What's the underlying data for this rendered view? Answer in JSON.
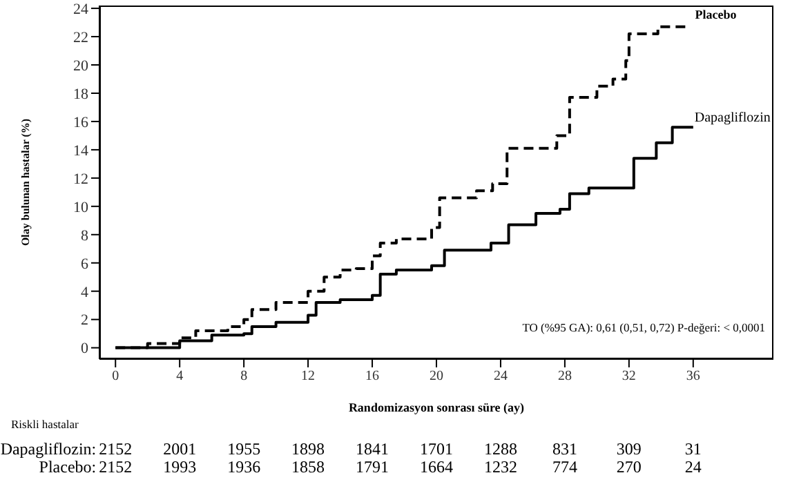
{
  "chart_data": {
    "type": "step",
    "ylabel": "Olay bulunan hastalar (%)",
    "xlabel": "Randomizasyon sonrası süre (ay)",
    "xlim": [
      -1,
      41
    ],
    "xticks": [
      0,
      4,
      8,
      12,
      16,
      20,
      24,
      28,
      32,
      36
    ],
    "ylim": [
      -0.8,
      24.2
    ],
    "yticks": [
      0,
      2,
      4,
      6,
      8,
      10,
      12,
      14,
      16,
      18,
      20,
      22,
      24
    ],
    "series": [
      {
        "name": "Placebo",
        "color": "#000000",
        "line_style": "dashed",
        "x": [
          0,
          2,
          4,
          5,
          7,
          8,
          8.5,
          10,
          12,
          13,
          14,
          15,
          16,
          16.5,
          17.5,
          19.7,
          20.2,
          22.5,
          23.5,
          24.4,
          27.5,
          28.3,
          30,
          31,
          31.8,
          32,
          33.8,
          35.6
        ],
        "values": [
          0,
          0.3,
          0.7,
          1.2,
          1.5,
          2.0,
          2.7,
          3.2,
          4.0,
          5.0,
          5.5,
          5.6,
          6.5,
          7.4,
          7.7,
          8.5,
          10.6,
          11.1,
          11.6,
          14.1,
          15.0,
          17.7,
          18.5,
          19.0,
          20.3,
          22.2,
          22.7,
          22.7
        ]
      },
      {
        "name": "Dapagliflozin",
        "color": "#000000",
        "line_style": "solid",
        "x": [
          0,
          4,
          6,
          8,
          8.5,
          10,
          12,
          12.5,
          14,
          16,
          16.5,
          17.5,
          19.7,
          20.5,
          23.4,
          24.5,
          26.2,
          27.7,
          28.3,
          29.5,
          31.6,
          32.3,
          33.7,
          34.7,
          36
        ],
        "values": [
          0,
          0.5,
          0.9,
          1.0,
          1.5,
          1.8,
          2.3,
          3.2,
          3.4,
          3.7,
          5.2,
          5.5,
          5.8,
          6.9,
          7.4,
          8.7,
          9.5,
          9.8,
          10.9,
          11.3,
          11.3,
          13.4,
          14.5,
          15.6,
          15.6
        ]
      }
    ],
    "annotations": [
      "TO (%95 GA): 0,61 (0,51, 0,72)  P-değeri: < 0,0001",
      "Riskli hastalar",
      "Dapagliflozin: 2152 2001 1955 1898 1841 1701 1288 831 309 31",
      "Placebo: 2152 1993 1936 1858 1791 1664 1232 774 270 24"
    ]
  }
}
